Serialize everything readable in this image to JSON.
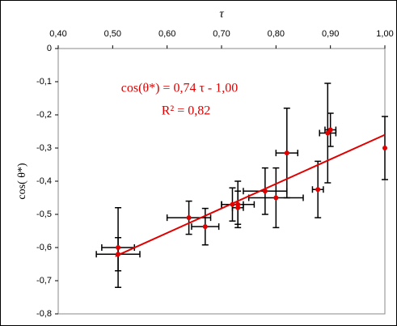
{
  "chart_data": {
    "type": "scatter",
    "x_label": "τ",
    "y_label": "cos( θ*)",
    "xlim": [
      0.4,
      1.0
    ],
    "ylim": [
      -0.8,
      0
    ],
    "xticks": [
      {
        "value": 0.4,
        "label": "0,40"
      },
      {
        "value": 0.5,
        "label": "0,50"
      },
      {
        "value": 0.6,
        "label": "0,60"
      },
      {
        "value": 0.7,
        "label": "0,70"
      },
      {
        "value": 0.8,
        "label": "0,80"
      },
      {
        "value": 0.9,
        "label": "0,90"
      },
      {
        "value": 1.0,
        "label": "1,00"
      }
    ],
    "yticks": [
      0,
      {
        "value": -0.1,
        "label": "-0,1"
      },
      {
        "value": -0.2,
        "label": "-0,2"
      },
      {
        "value": -0.3,
        "label": "-0,3"
      },
      {
        "value": -0.4,
        "label": "-0,4"
      },
      {
        "value": -0.5,
        "label": "-0,5"
      },
      {
        "value": -0.6,
        "label": "-0,6"
      },
      {
        "value": -0.7,
        "label": "-0,7"
      },
      {
        "value": -0.8,
        "label": "-0,8"
      }
    ],
    "color": "#e00000",
    "error_color": "#000000",
    "x": [
      0.51,
      0.51,
      0.64,
      0.67,
      0.72,
      0.73,
      0.73,
      0.78,
      0.8,
      0.82,
      0.877,
      0.895,
      0.9,
      1.0
    ],
    "values": [
      -0.6,
      -0.62,
      -0.51,
      -0.537,
      -0.47,
      -0.47,
      -0.48,
      -0.43,
      -0.45,
      -0.315,
      -0.425,
      -0.255,
      -0.245,
      -0.3
    ],
    "xerr": [
      0.03,
      0.04,
      0.04,
      0.025,
      0.02,
      0.03,
      0.01,
      0.04,
      0.05,
      0.02,
      0.01,
      0.015,
      0.01,
      0
    ],
    "yerr": [
      0.12,
      0.05,
      0.05,
      0.055,
      0.05,
      0.07,
      0.05,
      0.07,
      0.09,
      0.135,
      0.085,
      0.15,
      0.05,
      0.095
    ],
    "fit": {
      "label": "cos(θ*) = 0,74 τ - 1,00",
      "r2_label": "R² = 0,82",
      "slope": 0.74,
      "intercept": -1.0,
      "x": [
        0.505,
        1.0
      ]
    }
  }
}
